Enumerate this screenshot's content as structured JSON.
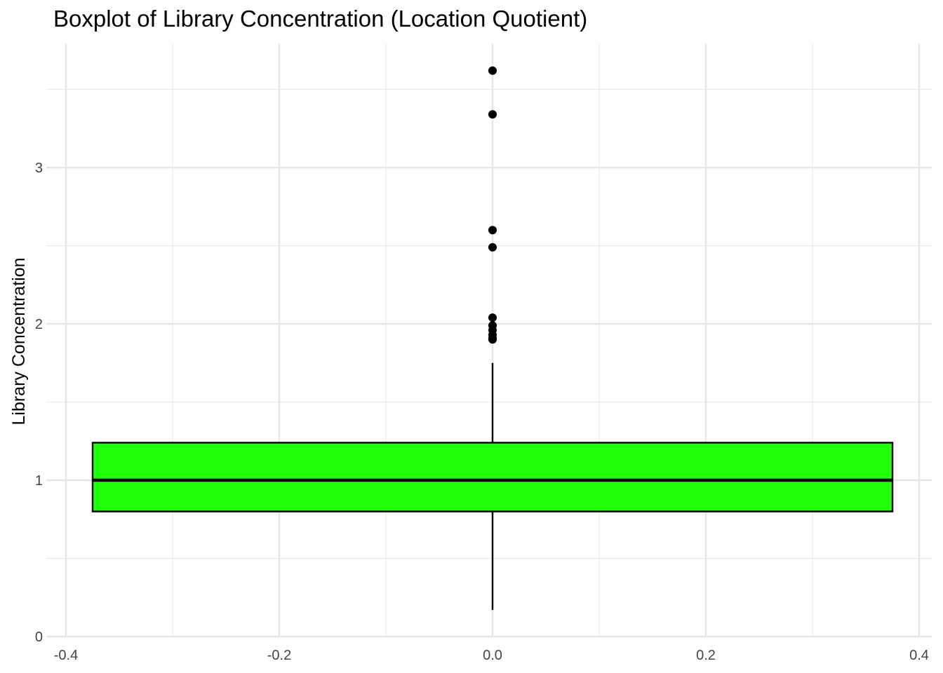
{
  "chart_data": {
    "type": "boxplot",
    "title": "Boxplot of Library Concentration (Location Quotient)",
    "xlabel": "",
    "ylabel": "Library Concentration",
    "xlim": [
      -0.4,
      0.4
    ],
    "ylim": [
      0,
      3.75
    ],
    "x_ticks": [
      -0.4,
      -0.2,
      0.0,
      0.2,
      0.4
    ],
    "x_tick_labels": [
      "-0.4",
      "-0.2",
      "0.0",
      "0.2",
      "0.4"
    ],
    "y_ticks": [
      0,
      1,
      2,
      3
    ],
    "y_tick_labels": [
      "0",
      "1",
      "2",
      "3"
    ],
    "grid": true,
    "box": {
      "x_center": 0.0,
      "x_min": -0.375,
      "x_max": 0.375,
      "whisker_low": 0.17,
      "q1": 0.8,
      "median": 1.0,
      "q3": 1.24,
      "whisker_high": 1.75,
      "fill": "#22ff0d",
      "stroke": "#000000"
    },
    "outliers": [
      3.62,
      3.34,
      2.6,
      2.49,
      2.04,
      1.99,
      1.96,
      1.93,
      1.91,
      1.9
    ]
  }
}
